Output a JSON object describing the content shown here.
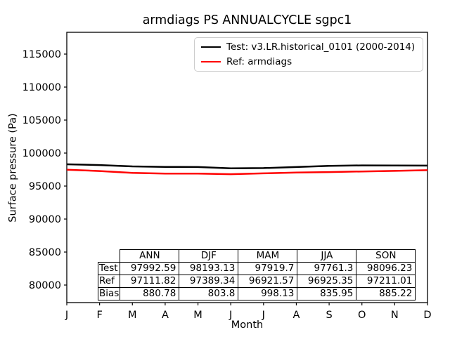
{
  "figure": {
    "title": "armdiags PS ANNUALCYCLE sgpc1",
    "xlabel": "Month",
    "ylabel": "Surface pressure (Pa)"
  },
  "chart_data": {
    "type": "line",
    "title": "armdiags PS ANNUALCYCLE sgpc1",
    "xlabel": "Month",
    "ylabel": "Surface pressure (Pa)",
    "x_tick_labels": [
      "J",
      "F",
      "M",
      "A",
      "M",
      "J",
      "J",
      "A",
      "S",
      "O",
      "N",
      "D"
    ],
    "y_ticks": [
      80000,
      85000,
      90000,
      95000,
      100000,
      105000,
      110000,
      115000
    ],
    "ylim": [
      77340,
      118300
    ],
    "grid": false,
    "legend_position": "upper right",
    "series": [
      {
        "name": "Test: v3.LR.historical_0101 (2000-2014)",
        "color": "#000000",
        "line_width": 2.5,
        "values": [
          98300,
          98180,
          97980,
          97900,
          97880,
          97680,
          97720,
          97880,
          98050,
          98130,
          98110,
          98100
        ]
      },
      {
        "name": "Ref: armdiags",
        "color": "#ff0000",
        "line_width": 2.5,
        "values": [
          97480,
          97280,
          96990,
          96880,
          96895,
          96800,
          96926,
          97050,
          97120,
          97213,
          97300,
          97408
        ]
      }
    ],
    "stats_table": {
      "col_headers": [
        "ANN",
        "DJF",
        "MAM",
        "JJA",
        "SON"
      ],
      "rows": [
        {
          "label": "Test",
          "values": [
            "97992.59",
            "98193.13",
            "97919.7",
            "97761.3",
            "98096.23"
          ]
        },
        {
          "label": "Ref",
          "values": [
            "97111.82",
            "97389.34",
            "96921.57",
            "96925.35",
            "97211.01"
          ]
        },
        {
          "label": "Bias",
          "values": [
            "880.78",
            "803.8",
            "998.13",
            "835.95",
            "885.22"
          ]
        }
      ]
    }
  }
}
